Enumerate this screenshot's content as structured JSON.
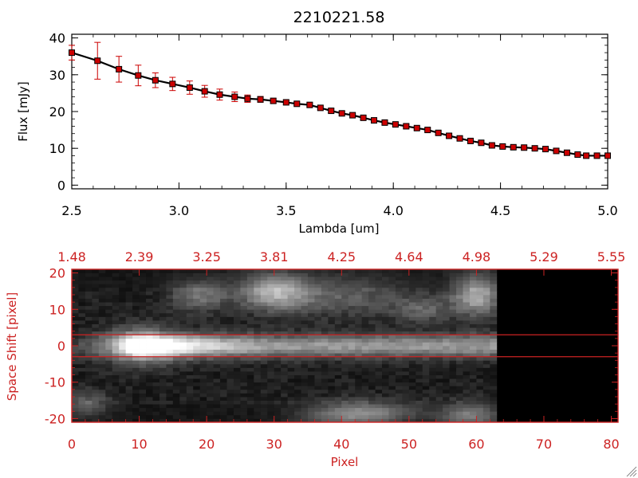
{
  "chart_data": [
    {
      "type": "line",
      "title": "2210221.58",
      "xlabel": "Lambda [um]",
      "ylabel": "Flux [mJy]",
      "xlim": [
        2.5,
        5.0
      ],
      "ylim": [
        -1,
        41
      ],
      "xticks": [
        "2.5",
        "3.0",
        "3.5",
        "4.0",
        "4.5",
        "5.0"
      ],
      "yticks": [
        "0",
        "10",
        "20",
        "30",
        "40"
      ],
      "line_color": "#000000",
      "marker_color": "#cc0000",
      "errorbar_color": "#cc0000",
      "x": [
        2.5,
        2.62,
        2.72,
        2.81,
        2.89,
        2.97,
        3.05,
        3.12,
        3.19,
        3.26,
        3.32,
        3.38,
        3.44,
        3.5,
        3.55,
        3.61,
        3.66,
        3.71,
        3.76,
        3.81,
        3.86,
        3.91,
        3.96,
        4.01,
        4.06,
        4.11,
        4.16,
        4.21,
        4.26,
        4.31,
        4.36,
        4.41,
        4.46,
        4.51,
        4.56,
        4.61,
        4.66,
        4.71,
        4.76,
        4.81,
        4.86,
        4.9,
        4.95,
        5.0
      ],
      "y": [
        36,
        33.8,
        31.5,
        29.8,
        28.5,
        27.5,
        26.5,
        25.5,
        24.6,
        24.0,
        23.5,
        23.3,
        22.9,
        22.5,
        22.1,
        21.8,
        21.0,
        20.2,
        19.5,
        19.0,
        18.3,
        17.6,
        17.0,
        16.5,
        16.0,
        15.5,
        15.0,
        14.2,
        13.4,
        12.7,
        12.0,
        11.5,
        10.8,
        10.5,
        10.3,
        10.2,
        10.0,
        9.8,
        9.3,
        8.8,
        8.3,
        8.0,
        8.0,
        8.0
      ],
      "yerr": [
        2,
        5,
        3.5,
        2.8,
        2.0,
        1.8,
        1.8,
        1.6,
        1.5,
        1.3,
        1.0,
        0.8,
        0.6,
        0.5,
        0.5,
        0.5,
        0.5,
        0.5,
        0.5,
        0.5,
        0.5,
        0.5,
        0.5,
        0.5,
        0.5,
        0.5,
        0.5,
        0.5,
        0.5,
        0.5,
        0.5,
        0.5,
        0.5,
        0.5,
        0.5,
        0.5,
        0.5,
        0.5,
        0.5,
        0.5,
        0.5,
        0.5,
        0.5,
        0.5
      ]
    },
    {
      "type": "heatmap",
      "xlabel": "Pixel",
      "ylabel": "Space Shift [pixel]",
      "xlim": [
        0,
        81
      ],
      "ylim": [
        -21,
        21
      ],
      "xticks": [
        "0",
        "10",
        "20",
        "30",
        "40",
        "50",
        "60",
        "70",
        "80"
      ],
      "yticks": [
        "-20",
        "-10",
        "0",
        "10",
        "20"
      ],
      "top_xticks": [
        "1.48",
        "2.39",
        "3.25",
        "3.81",
        "4.25",
        "4.64",
        "4.98",
        "5.29",
        "5.55"
      ],
      "axis_color": "#cc2222",
      "aperture_lines": [
        3,
        -3
      ],
      "data_extent_pixel": 63,
      "trace": {
        "center": 0,
        "width": 2.2,
        "peak_pixel": 10,
        "peak_intensity": 1.0,
        "fade_to": 0.48
      },
      "blobs": [
        {
          "x": 30,
          "y": 15,
          "sx": 3.5,
          "sy": 3.5,
          "i": 0.55
        },
        {
          "x": 19,
          "y": 14,
          "sx": 3,
          "sy": 3,
          "i": 0.35
        },
        {
          "x": 60,
          "y": 14,
          "sx": 2.5,
          "sy": 4,
          "i": 0.55
        },
        {
          "x": 52,
          "y": 10,
          "sx": 3,
          "sy": 2.5,
          "i": 0.25
        },
        {
          "x": 40,
          "y": 14,
          "sx": 7,
          "sy": 4,
          "i": 0.25
        },
        {
          "x": 41,
          "y": -19,
          "sx": 5,
          "sy": 2.5,
          "i": 0.35
        },
        {
          "x": 59,
          "y": -19,
          "sx": 3,
          "sy": 2.5,
          "i": 0.4
        },
        {
          "x": 2,
          "y": -16,
          "sx": 2.5,
          "sy": 2.5,
          "i": 0.28
        },
        {
          "x": 46,
          "y": -18,
          "sx": 5,
          "sy": 2,
          "i": 0.2
        }
      ]
    }
  ]
}
